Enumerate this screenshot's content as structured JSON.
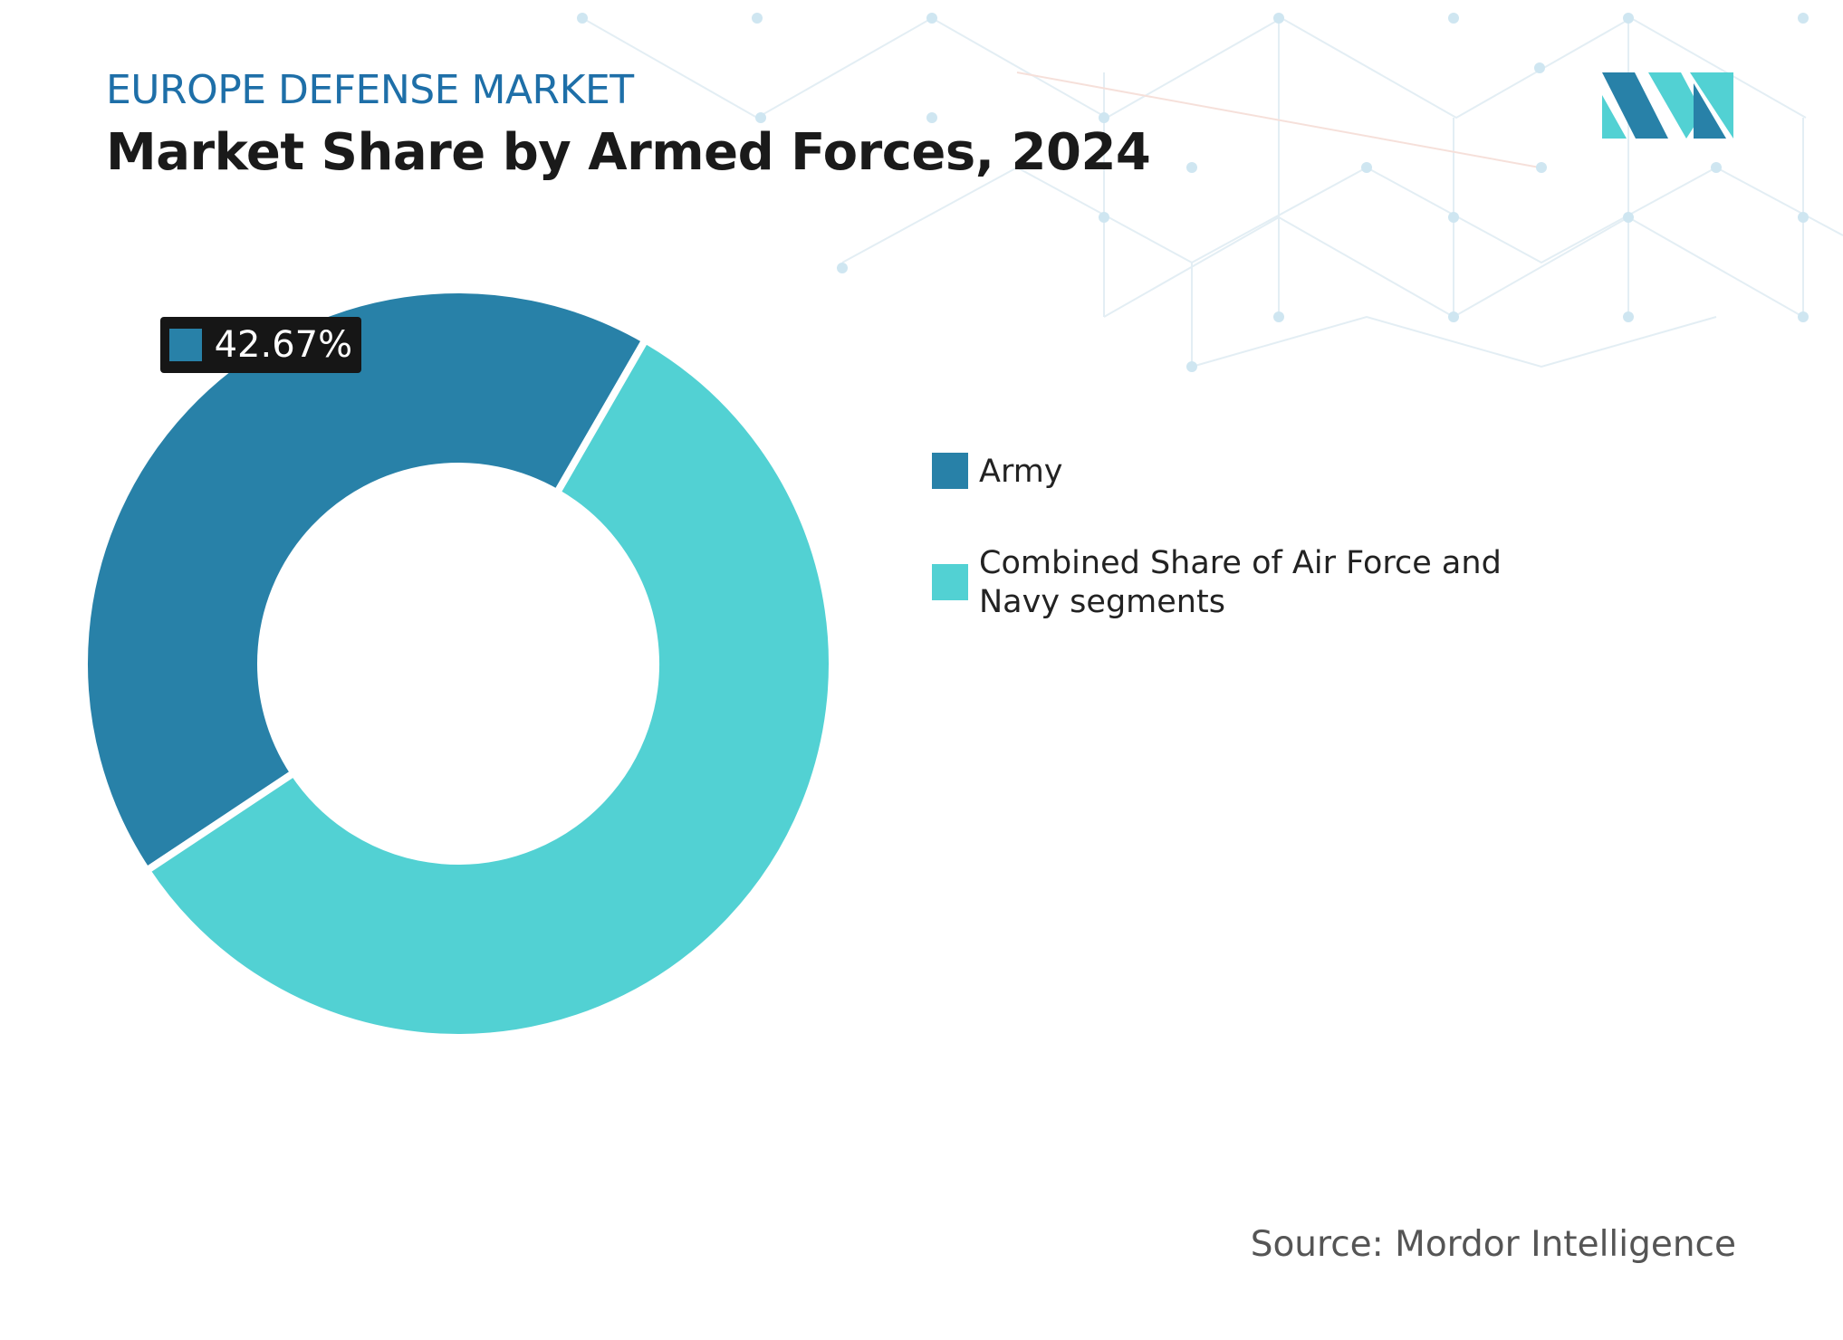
{
  "header": {
    "kicker": "EUROPE DEFENSE MARKET",
    "title": "Market Share by Armed Forces, 2024"
  },
  "chart_data": {
    "type": "donut",
    "categories": [
      "Army",
      "Combined Share of Air Force and Navy segments"
    ],
    "values": [
      42.67,
      57.33
    ],
    "value_labels": [
      "42.67%",
      null
    ],
    "colors": [
      "#2881a8",
      "#52d1d3"
    ]
  },
  "footer": {
    "source": "Source: Mordor Intelligence"
  }
}
